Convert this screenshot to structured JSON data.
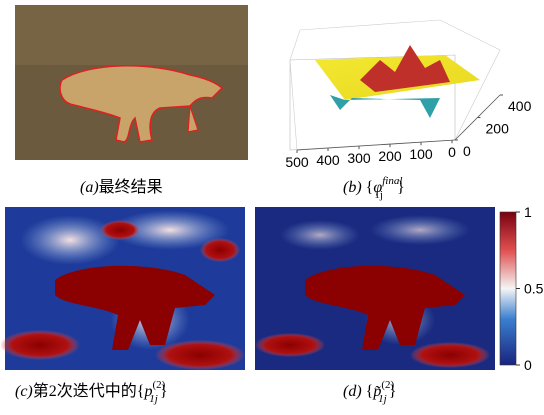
{
  "panels": [
    {
      "label": "(a)",
      "caption": "最终结果"
    },
    {
      "label": "(b)",
      "open": "{",
      "symbol": "φ",
      "sub": "1j",
      "sup": "final",
      "close": "}",
      "x_ticks": [
        500,
        400,
        300,
        200,
        100,
        0
      ],
      "y_ticks": [
        0,
        200,
        400
      ]
    },
    {
      "label": "(c)",
      "caption": "第2次迭代中的",
      "open": "{",
      "symbol": "p",
      "sub": "1j",
      "sup": "(2)",
      "close": "}"
    },
    {
      "label": "(d)",
      "open": "{",
      "symbol": "p̃",
      "sub": "1j",
      "sup": "(2)",
      "close": "}"
    }
  ],
  "colorbar": {
    "lim": [
      0,
      1
    ],
    "ticks": [
      1,
      0.5,
      0
    ]
  }
}
